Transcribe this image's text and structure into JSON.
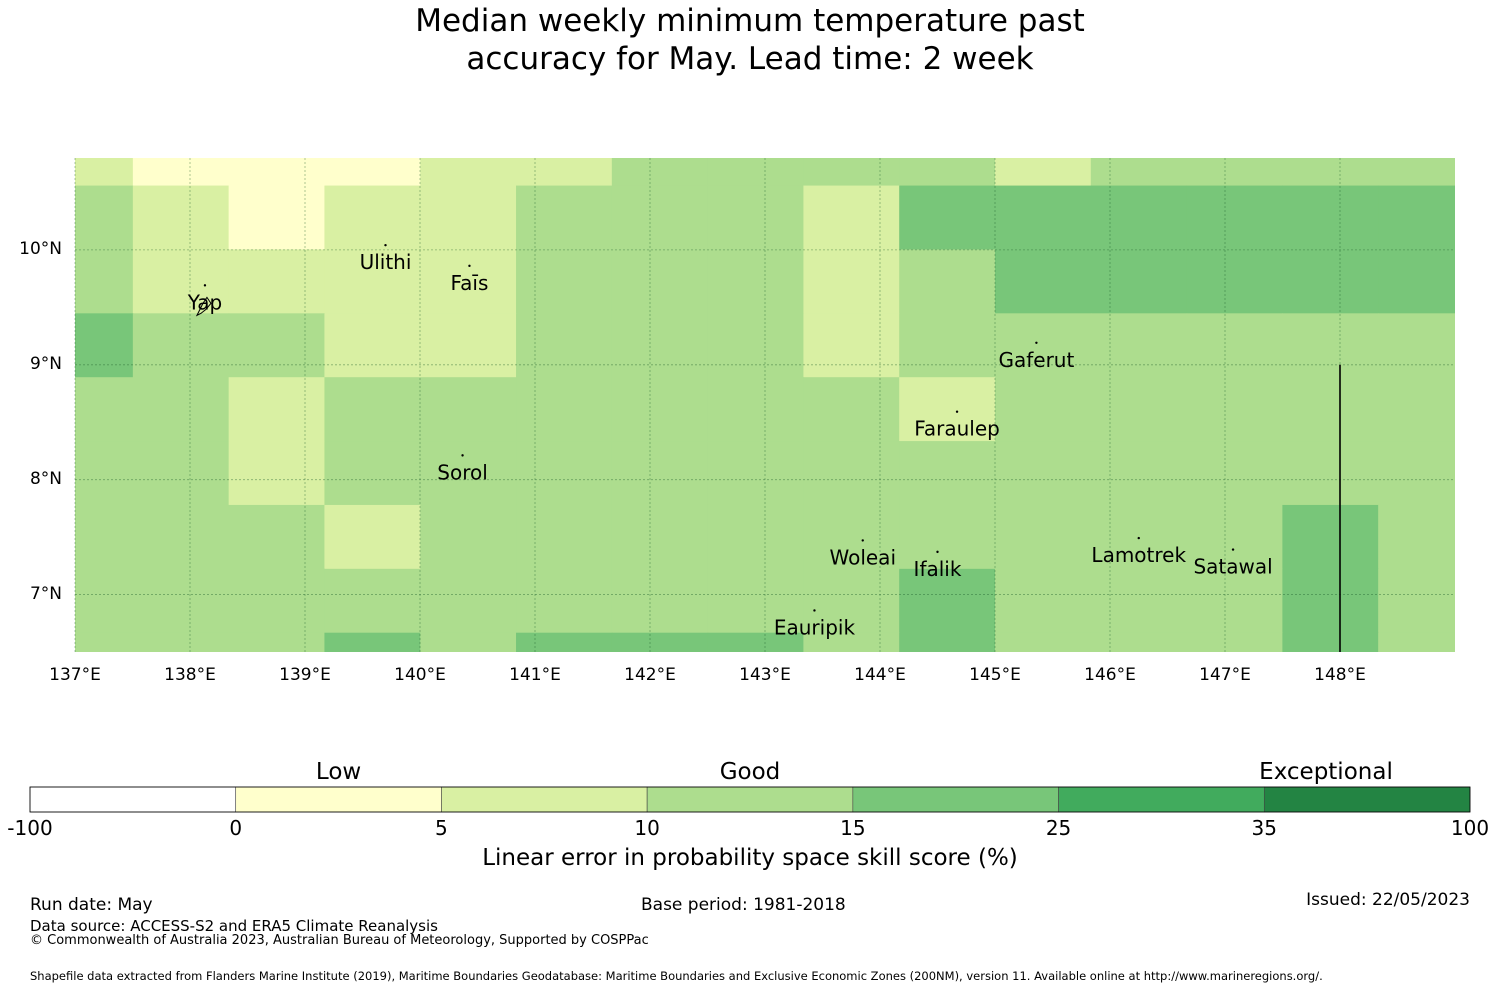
{
  "title_line1": "Median weekly minimum temperature past",
  "title_line2": "accuracy for May. Lead time: 2 week",
  "map": {
    "lon_range": [
      137.0,
      149.0
    ],
    "lat_range": [
      6.5,
      10.8
    ],
    "lat_ticks": [
      {
        "value": 10,
        "label": "10°N"
      },
      {
        "value": 9,
        "label": "9°N"
      },
      {
        "value": 8,
        "label": "8°N"
      },
      {
        "value": 7,
        "label": "7°N"
      }
    ],
    "lon_ticks": [
      {
        "value": 137,
        "label": "137°E"
      },
      {
        "value": 138,
        "label": "138°E"
      },
      {
        "value": 139,
        "label": "139°E"
      },
      {
        "value": 140,
        "label": "140°E"
      },
      {
        "value": 141,
        "label": "141°E"
      },
      {
        "value": 142,
        "label": "142°E"
      },
      {
        "value": 143,
        "label": "143°E"
      },
      {
        "value": 144,
        "label": "144°E"
      },
      {
        "value": 145,
        "label": "145°E"
      },
      {
        "value": 146,
        "label": "146°E"
      },
      {
        "value": 147,
        "label": "147°E"
      },
      {
        "value": 148,
        "label": "148°E"
      }
    ],
    "cell_width_deg": 0.833,
    "row_height_deg": 0.556,
    "columns_lon_start": 136.67,
    "rows_lat_start": 10.56,
    "grid_classes": [
      [
        2,
        1,
        1,
        1,
        2,
        2,
        3,
        3,
        3,
        3,
        2,
        3,
        3,
        3,
        3,
        3,
        4,
        4
      ],
      [
        3,
        2,
        1,
        2,
        2,
        3,
        3,
        3,
        2,
        4,
        4,
        4,
        4,
        4,
        4,
        4,
        4,
        4
      ],
      [
        3,
        2,
        2,
        2,
        2,
        3,
        3,
        3,
        2,
        3,
        4,
        4,
        4,
        4,
        4,
        4,
        4,
        4
      ],
      [
        4,
        3,
        3,
        2,
        2,
        3,
        3,
        3,
        2,
        3,
        3,
        3,
        3,
        3,
        3,
        3,
        4,
        4
      ],
      [
        3,
        3,
        2,
        3,
        3,
        3,
        3,
        3,
        3,
        2,
        3,
        3,
        3,
        3,
        3,
        3,
        3,
        3
      ],
      [
        3,
        3,
        2,
        3,
        3,
        3,
        3,
        3,
        3,
        3,
        3,
        3,
        3,
        3,
        3,
        3,
        3,
        3
      ],
      [
        3,
        3,
        3,
        2,
        3,
        3,
        3,
        3,
        3,
        3,
        3,
        3,
        3,
        4,
        3,
        3,
        3,
        3
      ],
      [
        3,
        3,
        3,
        3,
        3,
        3,
        3,
        3,
        3,
        4,
        3,
        3,
        3,
        4,
        3,
        3,
        3,
        3
      ],
      [
        3,
        3,
        3,
        4,
        3,
        4,
        4,
        4,
        3,
        4,
        3,
        3,
        3,
        4,
        3,
        3,
        3,
        3
      ]
    ],
    "islands": [
      {
        "name": "Yap",
        "lon": 138.13,
        "lat": 9.5
      },
      {
        "name": "Ulithi",
        "lon": 139.7,
        "lat": 9.85
      },
      {
        "name": "Faīs",
        "lon": 140.43,
        "lat": 9.67
      },
      {
        "name": "Gaferut",
        "lon": 145.36,
        "lat": 9.0
      },
      {
        "name": "Faraulep",
        "lon": 144.67,
        "lat": 8.4
      },
      {
        "name": "Sorol",
        "lon": 140.37,
        "lat": 8.02
      },
      {
        "name": "Woleai",
        "lon": 143.85,
        "lat": 7.28
      },
      {
        "name": "Ifalik",
        "lon": 144.5,
        "lat": 7.18
      },
      {
        "name": "Lamotrek",
        "lon": 146.25,
        "lat": 7.3
      },
      {
        "name": "Satawal",
        "lon": 147.07,
        "lat": 7.2
      },
      {
        "name": "Eauripik",
        "lon": 143.43,
        "lat": 6.67
      }
    ],
    "boundary_line": {
      "lon": 148.0,
      "lat_from": 9.0,
      "lat_to": 6.5
    }
  },
  "colorbar": {
    "bins": [
      {
        "from": "-100",
        "to": "0",
        "color": "#ffffff"
      },
      {
        "from": "0",
        "to": "5",
        "color": "#ffffcc"
      },
      {
        "from": "5",
        "to": "10",
        "color": "#d9f0a3"
      },
      {
        "from": "10",
        "to": "15",
        "color": "#addd8e"
      },
      {
        "from": "15",
        "to": "25",
        "color": "#78c679"
      },
      {
        "from": "25",
        "to": "35",
        "color": "#41ab5d"
      },
      {
        "from": "35",
        "to": "100",
        "color": "#238443"
      }
    ],
    "tick_labels": [
      "-100",
      "0",
      "5",
      "10",
      "15",
      "25",
      "35",
      "100"
    ],
    "category_labels": [
      "Low",
      "Good",
      "Exceptional"
    ],
    "title": "Linear error in probability space skill score (%)"
  },
  "footer": {
    "run_date": "Run date: May",
    "base_period": "Base period: 1981-2018",
    "issued": "Issued: 22/05/2023",
    "data_source": "Data source: ACCESS-S2 and ERA5 Climate Reanalysis",
    "copyright": "© Commonwealth of Australia 2023, Australian Bureau of Meteorology, Supported by COSPPac",
    "shapefile": "Shapefile data extracted from Flanders Marine Institute (2019), Maritime Boundaries Geodatabase: Maritime Boundaries and Exclusive Economic Zones (200NM), version 11. Available online at http://www.marineregions.org/."
  }
}
